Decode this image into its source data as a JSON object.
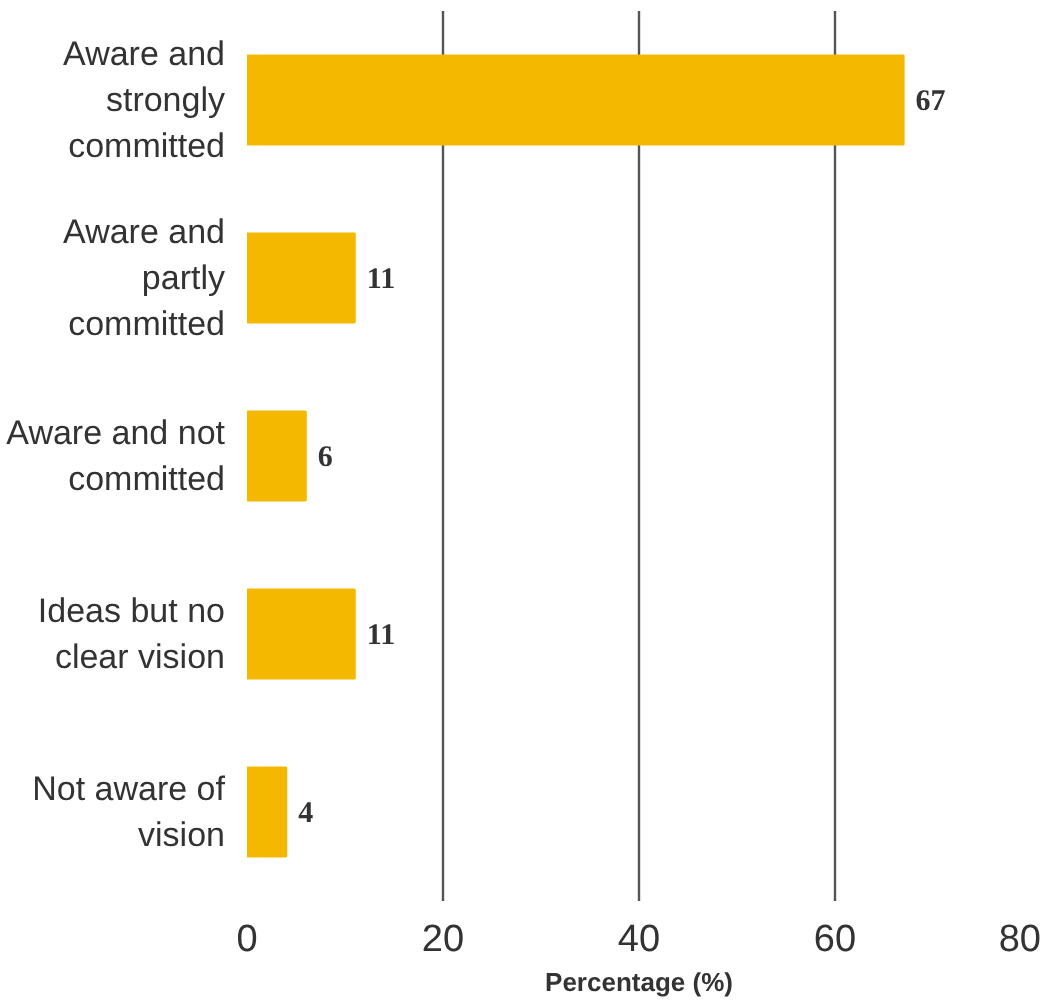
{
  "chart_data": {
    "type": "bar",
    "orientation": "horizontal",
    "xlabel": "Percentage (%)",
    "categories": [
      "Aware and\nstrongly\ncommitted",
      "Aware and\npartly\ncommitted",
      "Aware and not\ncommitted",
      "Ideas but no\nclear vision",
      "Not aware of\nvision"
    ],
    "values": [
      67,
      11,
      6,
      11,
      4
    ],
    "color": "#f5b800",
    "xlim": [
      0,
      80
    ],
    "xticks": [
      0,
      20,
      40,
      60,
      80
    ],
    "grid": "x",
    "data_labels": true
  }
}
